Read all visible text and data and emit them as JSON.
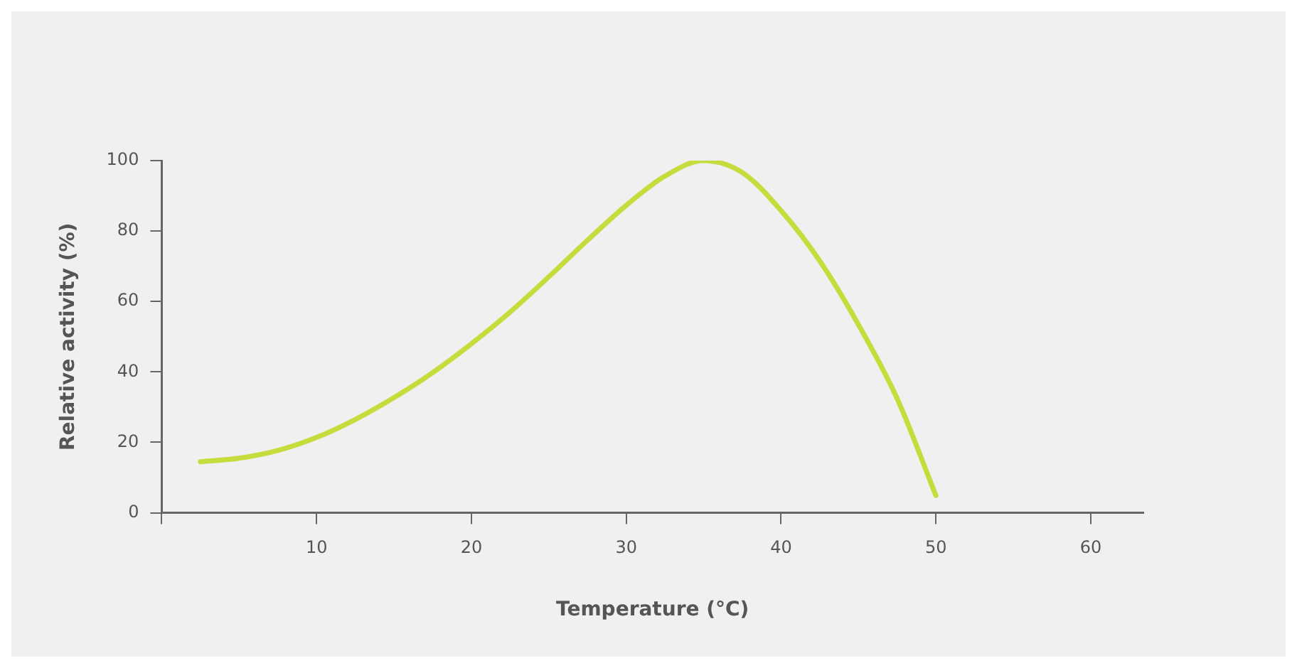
{
  "chart_data": {
    "type": "line",
    "xlabel": "Temperature (°C)",
    "ylabel": "Relative activity (%)",
    "x": [
      2.5,
      5,
      7.5,
      10,
      12.5,
      15,
      17.5,
      20,
      22.5,
      25,
      27.5,
      30,
      32.5,
      35,
      37.5,
      40,
      42.5,
      45,
      47.5,
      50
    ],
    "series": [
      {
        "color": "#c5dc3c",
        "values": [
          14.5,
          15.5,
          17.7,
          21.4,
          26.5,
          32.7,
          39.8,
          48,
          57,
          67,
          77.4,
          87.3,
          95.6,
          100,
          96.6,
          85.8,
          71.5,
          53.4,
          32.4,
          4.9
        ]
      }
    ],
    "xlim": [
      0,
      63.4
    ],
    "xticks": [
      {
        "value": 0,
        "label": null
      },
      10,
      20,
      30,
      40,
      50,
      60
    ],
    "ylim": [
      0,
      100
    ],
    "yticks": [
      0,
      20,
      40,
      60,
      80,
      100
    ],
    "grid": false,
    "legend": false,
    "marker": "none",
    "line_style": "solid"
  }
}
